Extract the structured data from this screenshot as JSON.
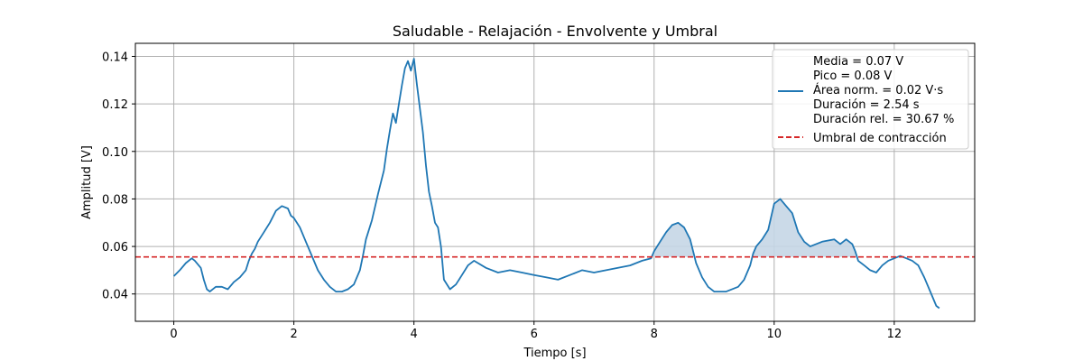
{
  "chart_data": {
    "type": "line",
    "title": "Saludable - Relajación - Envolvente y Umbral",
    "xlabel": "Tiempo [s]",
    "ylabel": "Amplitud [V]",
    "xlim": [
      -0.64,
      13.34
    ],
    "ylim": [
      0.0285,
      0.1455
    ],
    "xticks": [
      0,
      2,
      4,
      6,
      8,
      10,
      12
    ],
    "xtick_labels": [
      "0",
      "2",
      "4",
      "6",
      "8",
      "10",
      "12"
    ],
    "yticks": [
      0.04,
      0.06,
      0.08,
      0.1,
      0.12,
      0.14
    ],
    "ytick_labels": [
      "0.04",
      "0.06",
      "0.08",
      "0.10",
      "0.12",
      "0.14"
    ],
    "grid": true,
    "legend_position": "top-right",
    "threshold": {
      "name": "Umbral de contracción",
      "value": 0.0556,
      "color": "#d62728",
      "style": "dashed"
    },
    "series": [
      {
        "name": "Envolvente",
        "legend_lines": [
          "Media = 0.07 V",
          "Pico = 0.08 V",
          "Área norm. = 0.02 V·s",
          "Duración = 2.54 s",
          "Duración rel. = 30.67 %"
        ],
        "color": "#1f77b4",
        "fill_color": "#c5d6e6",
        "x": [
          0.0,
          0.1,
          0.2,
          0.3,
          0.35,
          0.45,
          0.5,
          0.55,
          0.6,
          0.7,
          0.8,
          0.9,
          1.0,
          1.1,
          1.2,
          1.25,
          1.3,
          1.35,
          1.4,
          1.5,
          1.6,
          1.7,
          1.8,
          1.9,
          1.95,
          2.0,
          2.1,
          2.2,
          2.3,
          2.4,
          2.5,
          2.6,
          2.7,
          2.8,
          2.9,
          3.0,
          3.1,
          3.15,
          3.2,
          3.3,
          3.4,
          3.5,
          3.55,
          3.6,
          3.65,
          3.7,
          3.75,
          3.8,
          3.85,
          3.9,
          3.95,
          3.98,
          4.0,
          4.05,
          4.1,
          4.15,
          4.2,
          4.25,
          4.3,
          4.35,
          4.4,
          4.45,
          4.5,
          4.6,
          4.7,
          4.8,
          4.9,
          5.0,
          5.2,
          5.4,
          5.6,
          5.8,
          6.0,
          6.2,
          6.4,
          6.6,
          6.8,
          7.0,
          7.2,
          7.4,
          7.6,
          7.8,
          7.95,
          8.0,
          8.1,
          8.2,
          8.3,
          8.4,
          8.5,
          8.6,
          8.65,
          8.7,
          8.8,
          8.9,
          9.0,
          9.2,
          9.4,
          9.5,
          9.6,
          9.65,
          9.7,
          9.8,
          9.9,
          10.0,
          10.1,
          10.2,
          10.3,
          10.4,
          10.5,
          10.6,
          10.8,
          11.0,
          11.1,
          11.2,
          11.3,
          11.35,
          11.4,
          11.5,
          11.6,
          11.7,
          11.8,
          11.9,
          12.0,
          12.1,
          12.2,
          12.3,
          12.4,
          12.5,
          12.6,
          12.7,
          12.75
        ],
        "y": [
          0.0475,
          0.05,
          0.053,
          0.055,
          0.054,
          0.051,
          0.046,
          0.042,
          0.041,
          0.043,
          0.043,
          0.042,
          0.045,
          0.047,
          0.05,
          0.054,
          0.057,
          0.059,
          0.062,
          0.066,
          0.07,
          0.075,
          0.077,
          0.076,
          0.073,
          0.072,
          0.068,
          0.062,
          0.056,
          0.05,
          0.046,
          0.043,
          0.041,
          0.041,
          0.042,
          0.044,
          0.05,
          0.056,
          0.063,
          0.071,
          0.082,
          0.092,
          0.101,
          0.109,
          0.116,
          0.112,
          0.12,
          0.128,
          0.135,
          0.138,
          0.134,
          0.137,
          0.139,
          0.128,
          0.118,
          0.108,
          0.094,
          0.083,
          0.077,
          0.07,
          0.068,
          0.06,
          0.046,
          0.042,
          0.044,
          0.048,
          0.052,
          0.054,
          0.051,
          0.049,
          0.05,
          0.049,
          0.048,
          0.047,
          0.046,
          0.048,
          0.05,
          0.049,
          0.05,
          0.051,
          0.052,
          0.054,
          0.055,
          0.058,
          0.062,
          0.066,
          0.069,
          0.07,
          0.068,
          0.063,
          0.058,
          0.053,
          0.047,
          0.043,
          0.041,
          0.041,
          0.043,
          0.046,
          0.052,
          0.057,
          0.06,
          0.063,
          0.067,
          0.078,
          0.08,
          0.077,
          0.074,
          0.066,
          0.062,
          0.06,
          0.062,
          0.063,
          0.061,
          0.063,
          0.061,
          0.058,
          0.054,
          0.052,
          0.05,
          0.049,
          0.052,
          0.054,
          0.055,
          0.056,
          0.055,
          0.054,
          0.052,
          0.047,
          0.041,
          0.035,
          0.034
        ]
      }
    ],
    "shaded_regions_x": [
      [
        7.95,
        8.65
      ],
      [
        9.65,
        11.35
      ]
    ]
  }
}
